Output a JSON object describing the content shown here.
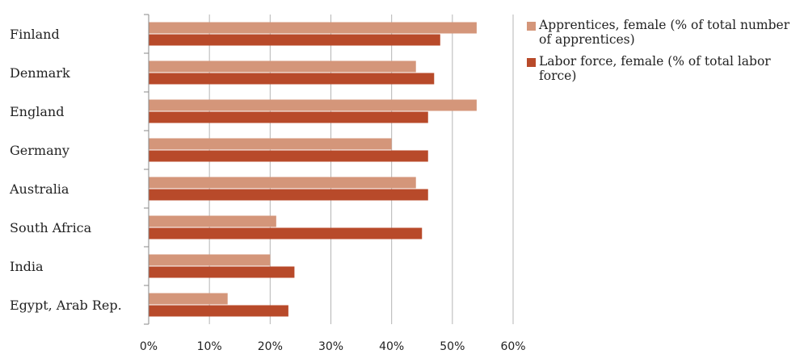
{
  "chart_data": {
    "type": "bar",
    "orientation": "horizontal",
    "categories": [
      "Finland",
      "Denmark",
      "England",
      "Germany",
      "Australia",
      "South Africa",
      "India",
      "Egypt, Arab Rep."
    ],
    "series": [
      {
        "name": "Apprentices, female (% of total number of apprentices)",
        "color": "#d4967a",
        "values": [
          54,
          44,
          54,
          40,
          44,
          21,
          20,
          13
        ]
      },
      {
        "name": "Labor force, female (% of total labor force)",
        "color": "#b84a2a",
        "values": [
          48,
          47,
          46,
          46,
          46,
          45,
          24,
          23
        ]
      }
    ],
    "xlim": [
      0,
      60
    ],
    "xticks": [
      0,
      10,
      20,
      30,
      40,
      50,
      60
    ],
    "xtick_labels": [
      "0%",
      "10%",
      "20%",
      "30%",
      "40%",
      "50%",
      "60%"
    ],
    "grid": "vertical",
    "legend_position": "right",
    "title": "",
    "xlabel": "",
    "ylabel": ""
  }
}
